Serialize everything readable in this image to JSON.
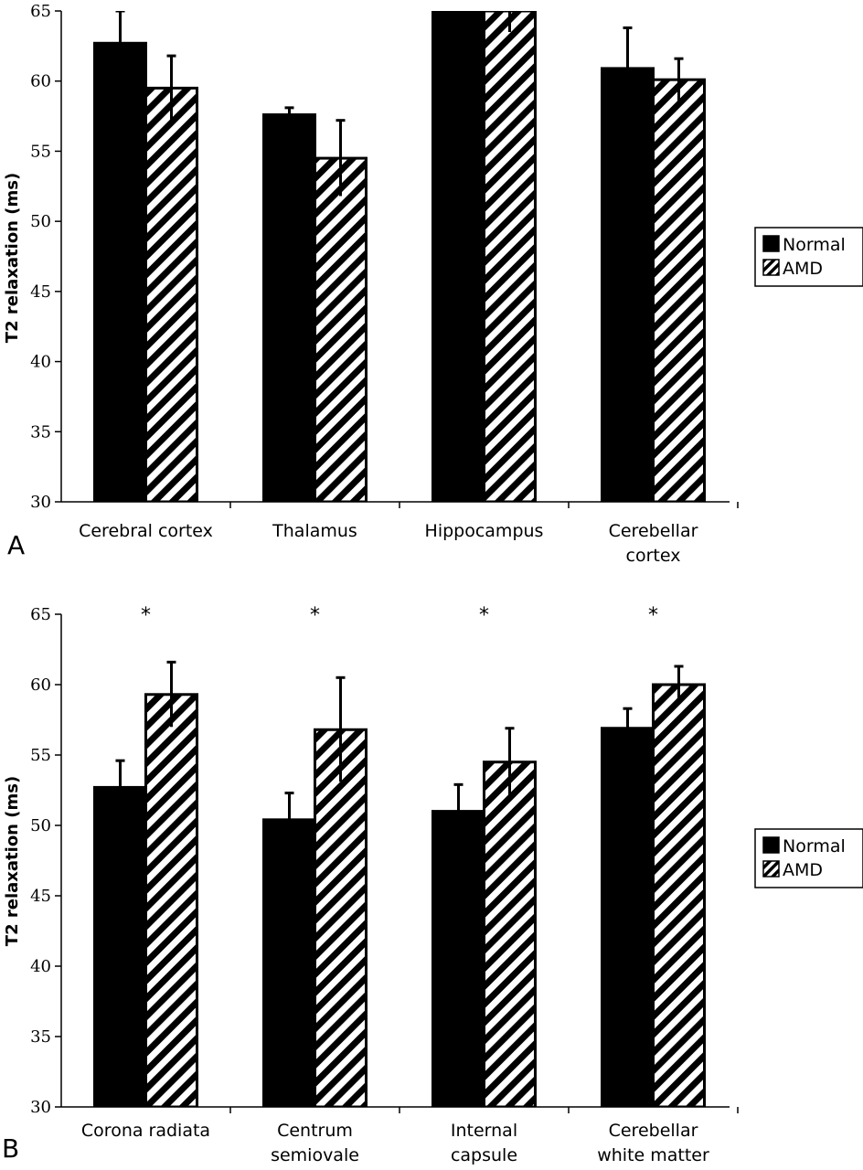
{
  "chart_data": [
    {
      "type": "bar",
      "panel_label": "A",
      "categories": [
        [
          "Cerebral cortex"
        ],
        [
          "Thalamus"
        ],
        [
          "Hippocampus"
        ],
        [
          "Cerebellar",
          "cortex"
        ]
      ],
      "series": [
        {
          "name": "Normal",
          "fill": "solid-black",
          "values": [
            62.7,
            57.6,
            65.0,
            60.9
          ],
          "errors": [
            2.3,
            0.5,
            0.0,
            2.9
          ]
        },
        {
          "name": "AMD",
          "fill": "diagonal-hatch",
          "values": [
            59.5,
            54.5,
            65.0,
            60.1
          ],
          "errors": [
            2.3,
            2.7,
            1.5,
            1.5
          ]
        }
      ],
      "significance": [
        "",
        "",
        "",
        ""
      ],
      "ylabel": "T2 relaxation (ms)",
      "yticks": [
        "30",
        "35",
        "40",
        "45",
        "50",
        "55",
        "60",
        "65"
      ],
      "ylim": [
        30,
        65
      ],
      "grid": false,
      "legend_position": "right"
    },
    {
      "type": "bar",
      "panel_label": "B",
      "categories": [
        [
          "Corona radiata"
        ],
        [
          "Centrum",
          "semiovale"
        ],
        [
          "Internal",
          "capsule"
        ],
        [
          "Cerebellar",
          "white matter"
        ]
      ],
      "series": [
        {
          "name": "Normal",
          "fill": "solid-black",
          "values": [
            52.7,
            50.4,
            51.0,
            56.9
          ],
          "errors": [
            1.9,
            1.9,
            1.9,
            1.4
          ]
        },
        {
          "name": "AMD",
          "fill": "diagonal-hatch",
          "values": [
            59.3,
            56.8,
            54.5,
            60.0
          ],
          "errors": [
            2.3,
            3.7,
            2.4,
            1.3
          ]
        }
      ],
      "significance": [
        "*",
        "*",
        "*",
        "*"
      ],
      "ylabel": "T2 relaxation (ms)",
      "yticks": [
        "30",
        "35",
        "40",
        "45",
        "50",
        "55",
        "60",
        "65"
      ],
      "ylim": [
        30,
        65
      ],
      "grid": false,
      "legend_position": "right"
    }
  ],
  "colors": {
    "normal": "#000000",
    "amd_stripe": "#000000",
    "amd_background": "#ffffff"
  }
}
